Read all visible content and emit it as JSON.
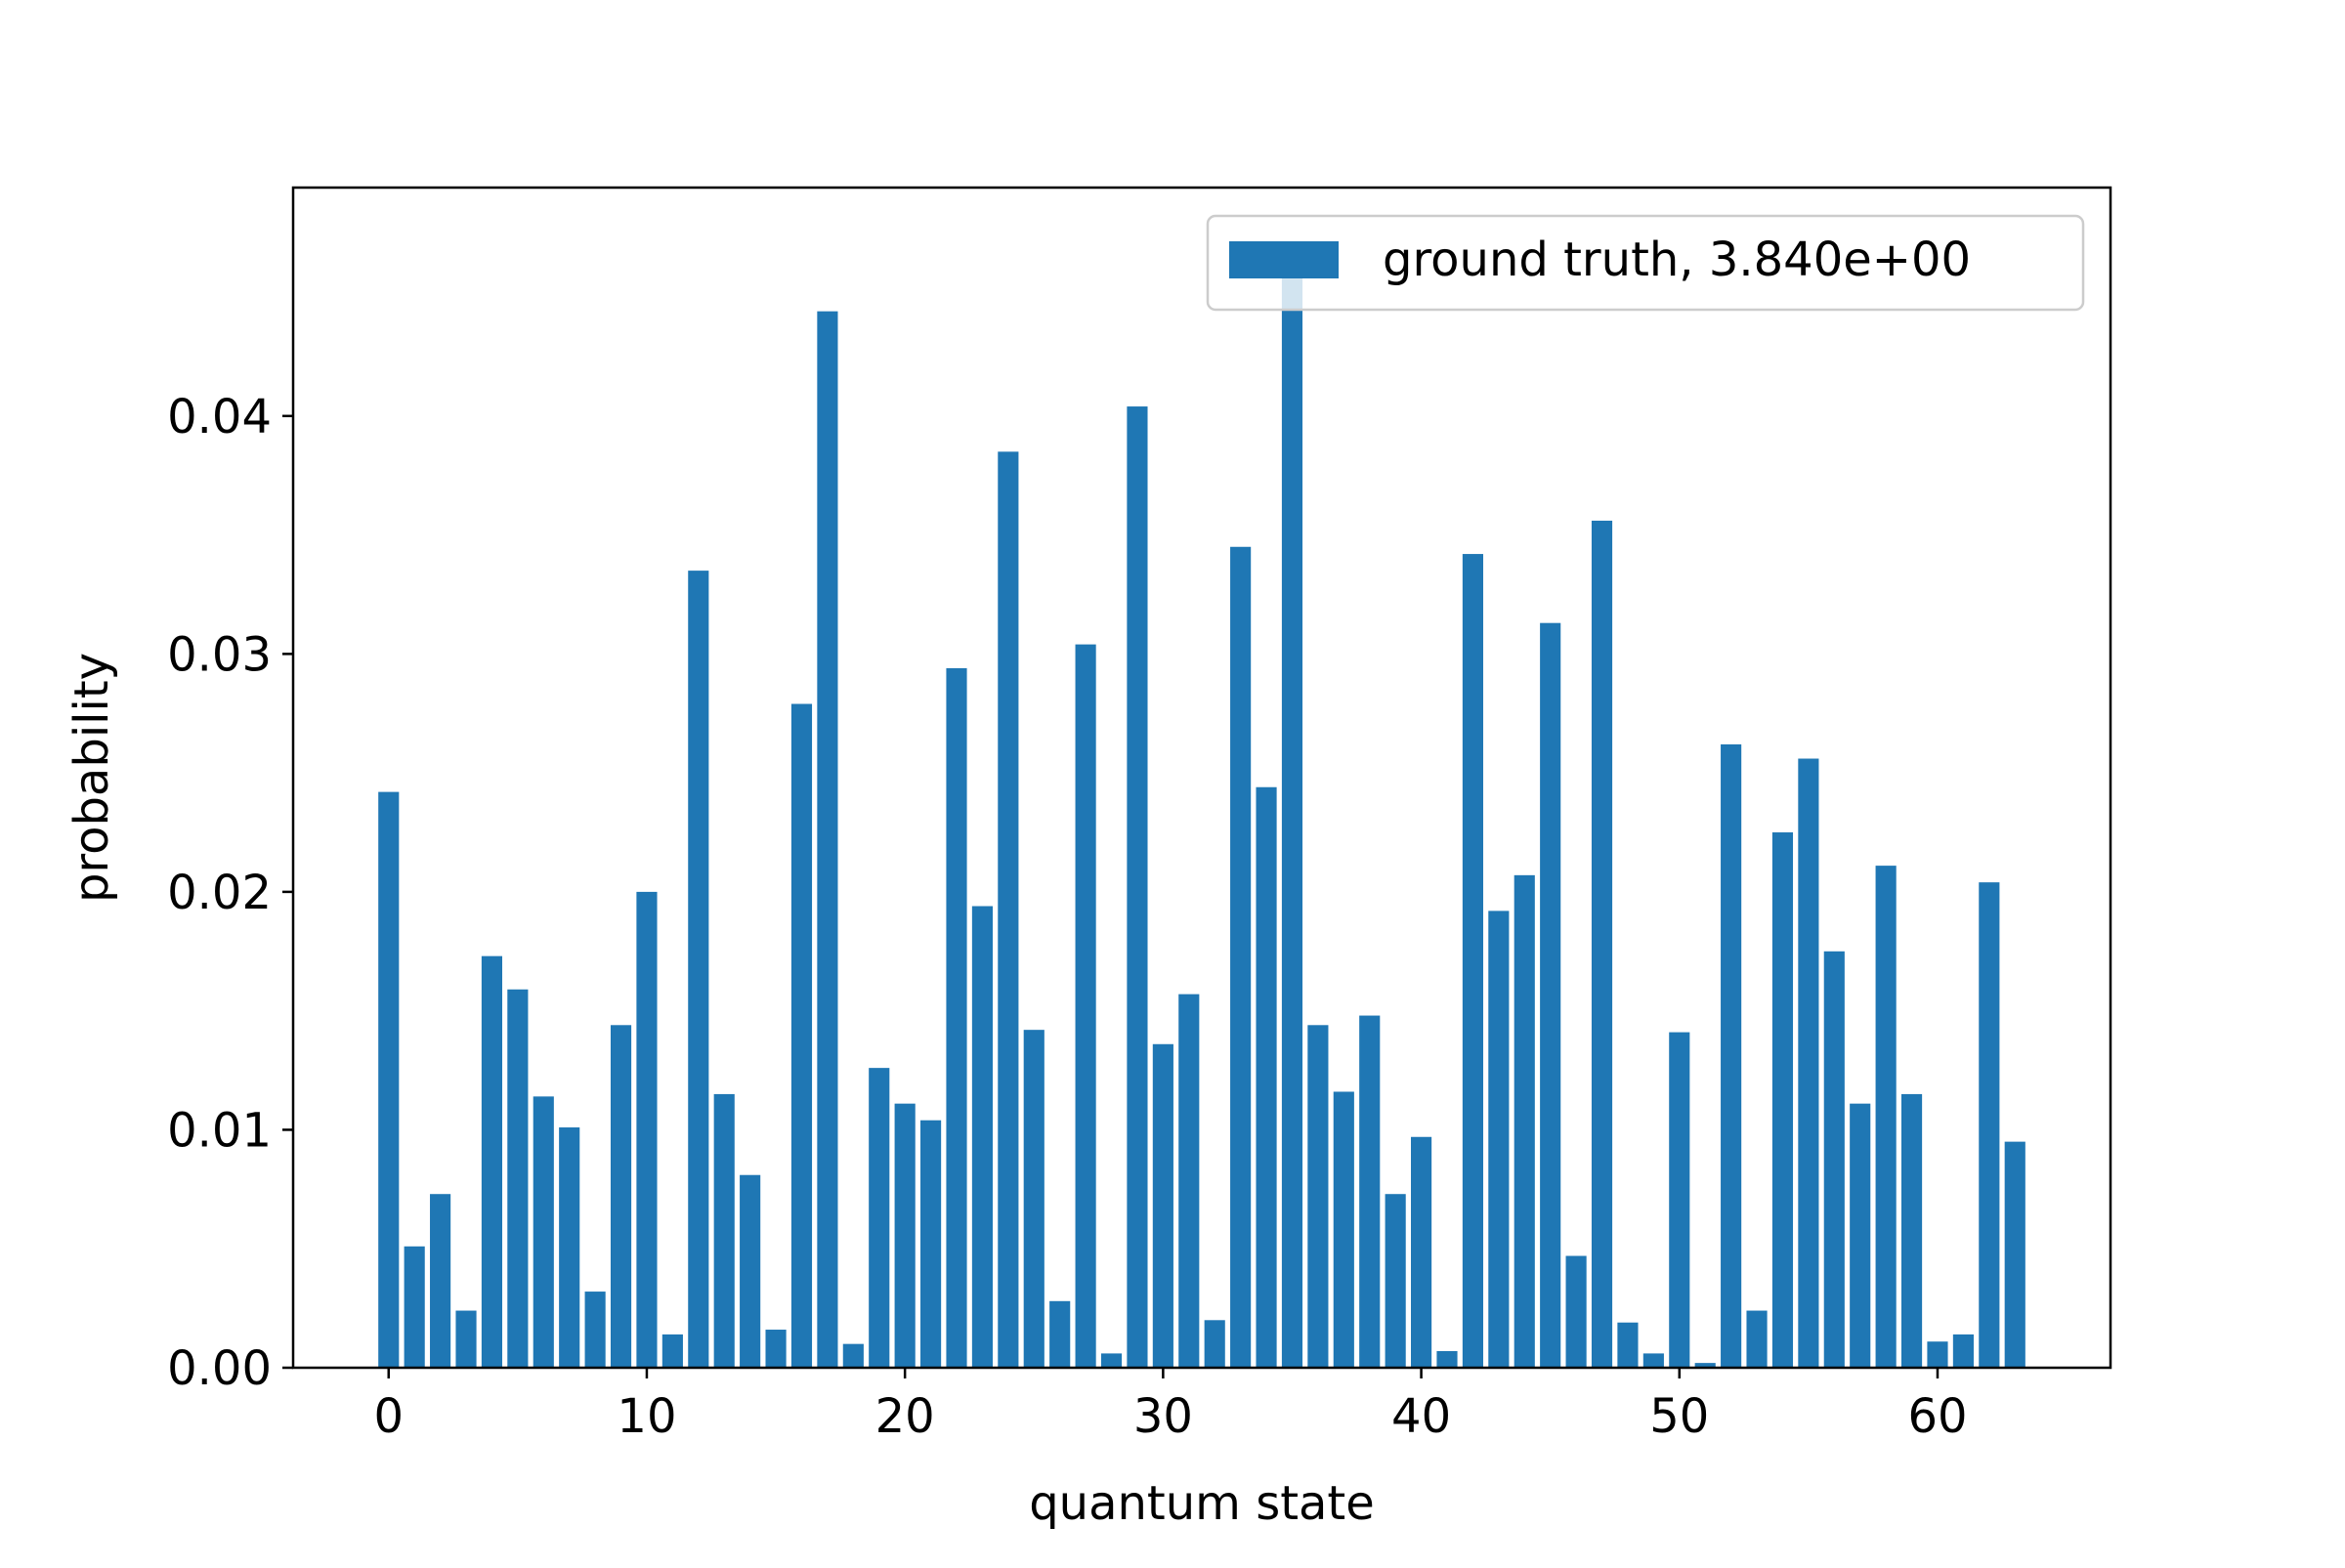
{
  "chart_data": {
    "type": "bar",
    "title": "",
    "xlabel": "quantum state",
    "ylabel": "probability",
    "xlim": [
      -3.7,
      66.7
    ],
    "ylim": [
      0,
      0.0496
    ],
    "xticks": [
      0,
      10,
      20,
      30,
      40,
      50,
      60
    ],
    "yticks": [
      0.0,
      0.01,
      0.02,
      0.03,
      0.04
    ],
    "xtick_labels": [
      "0",
      "10",
      "20",
      "30",
      "40",
      "50",
      "60"
    ],
    "ytick_labels": [
      "0.00",
      "0.01",
      "0.02",
      "0.03",
      "0.04"
    ],
    "bar_width": 0.8,
    "grid": false,
    "legend_position": "top-right",
    "series": [
      {
        "name": "ground truth, 3.840e+00",
        "color": "#1f77b4",
        "x": [
          0,
          1,
          2,
          3,
          4,
          5,
          6,
          7,
          8,
          9,
          10,
          11,
          12,
          13,
          14,
          15,
          16,
          17,
          18,
          19,
          20,
          21,
          22,
          23,
          24,
          25,
          26,
          27,
          28,
          29,
          30,
          31,
          32,
          33,
          34,
          35,
          36,
          37,
          38,
          39,
          40,
          41,
          42,
          43,
          44,
          45,
          46,
          47,
          48,
          49,
          50,
          51,
          52,
          53,
          54,
          55,
          56,
          57,
          58,
          59,
          60,
          61,
          62,
          63
        ],
        "values": [
          0.0242,
          0.0051,
          0.0073,
          0.0024,
          0.0173,
          0.0159,
          0.0114,
          0.0101,
          0.0032,
          0.0144,
          0.02,
          0.0014,
          0.0335,
          0.0115,
          0.0081,
          0.0016,
          0.0279,
          0.0444,
          0.001,
          0.0126,
          0.0111,
          0.0104,
          0.0294,
          0.0194,
          0.0385,
          0.0142,
          0.0028,
          0.0304,
          0.0006,
          0.0404,
          0.0136,
          0.0157,
          0.002,
          0.0345,
          0.0244,
          0.0462,
          0.0144,
          0.0116,
          0.0148,
          0.0073,
          0.0097,
          0.0007,
          0.0342,
          0.0192,
          0.0207,
          0.0313,
          0.0047,
          0.0356,
          0.0019,
          0.0006,
          0.0141,
          0.0002,
          0.0262,
          0.0024,
          0.0225,
          0.0256,
          0.0175,
          0.0111,
          0.0211,
          0.0115,
          0.0011,
          0.0014,
          0.0204,
          0.0095
        ]
      }
    ]
  }
}
